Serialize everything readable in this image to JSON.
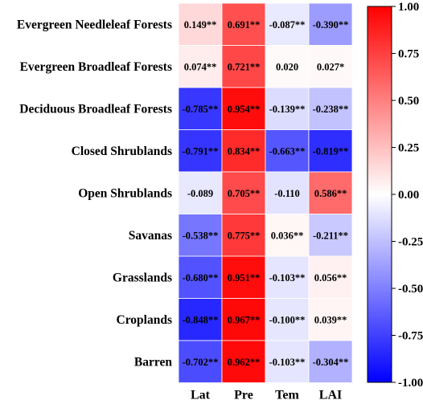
{
  "chart_data": {
    "type": "heatmap",
    "title": "",
    "rows": [
      "Evergreen Needleleaf Forests",
      "Evergreen Broadleaf Forests",
      "Deciduous Broadleaf Forests",
      "Closed Shrublands",
      "Open Shrublands",
      "Savanas",
      "Grasslands",
      "Croplands",
      "Barren"
    ],
    "columns": [
      "Lat",
      "Pre",
      "Tem",
      "LAI"
    ],
    "values": [
      [
        0.149,
        0.691,
        -0.087,
        -0.39
      ],
      [
        0.074,
        0.721,
        0.02,
        0.027
      ],
      [
        -0.785,
        0.954,
        -0.139,
        -0.238
      ],
      [
        -0.791,
        0.834,
        -0.663,
        -0.819
      ],
      [
        -0.089,
        0.705,
        -0.11,
        0.586
      ],
      [
        -0.538,
        0.775,
        0.036,
        -0.211
      ],
      [
        -0.68,
        0.951,
        -0.103,
        0.056
      ],
      [
        -0.848,
        0.967,
        -0.1,
        0.039
      ],
      [
        -0.702,
        0.962,
        -0.103,
        -0.304
      ]
    ],
    "labels": [
      [
        "0.149**",
        "0.691**",
        "-0.087**",
        "-0.390**"
      ],
      [
        "0.074**",
        "0.721**",
        "0.020",
        "0.027*"
      ],
      [
        "-0.785**",
        "0.954**",
        "-0.139**",
        "-0.238**"
      ],
      [
        "-0.791**",
        "0.834**",
        "-0.663**",
        "-0.819**"
      ],
      [
        "-0.089",
        "0.705**",
        "-0.110",
        "0.586**"
      ],
      [
        "-0.538**",
        "0.775**",
        "0.036**",
        "-0.211**"
      ],
      [
        "-0.680**",
        "0.951**",
        "-0.103**",
        "0.056**"
      ],
      [
        "-0.848**",
        "0.967**",
        "-0.100**",
        "0.039**"
      ],
      [
        "-0.702**",
        "0.962**",
        "-0.103**",
        "-0.304**"
      ]
    ],
    "colorbar": {
      "min": -1.0,
      "max": 1.0,
      "ticks": [
        "1.00",
        "0.75",
        "0.50",
        "0.25",
        "0.00",
        "-0.25",
        "-0.50",
        "-0.75",
        "-1.00"
      ],
      "low_color": "#0000ff",
      "mid_color": "#ffffff",
      "high_color": "#ff0000"
    },
    "xlabel": "",
    "ylabel": ""
  }
}
